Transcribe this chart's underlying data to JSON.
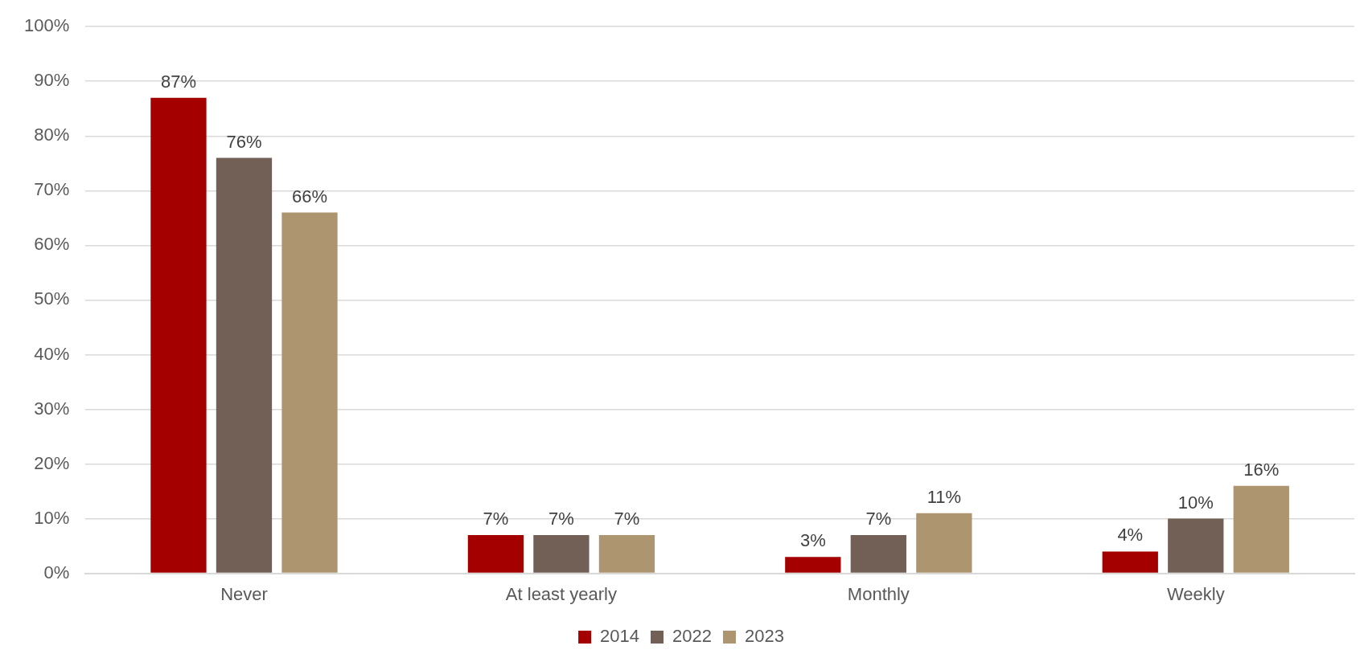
{
  "chart_data": {
    "type": "bar",
    "categories": [
      "Never",
      "At least yearly",
      "Monthly",
      "Weekly"
    ],
    "series": [
      {
        "name": "2014",
        "color": "#a50000",
        "values": [
          87,
          7,
          3,
          4
        ],
        "value_labels": [
          "87%",
          "7%",
          "3%",
          "4%"
        ]
      },
      {
        "name": "2022",
        "color": "#725f55",
        "values": [
          76,
          7,
          7,
          10
        ],
        "value_labels": [
          "76%",
          "7%",
          "7%",
          "10%"
        ]
      },
      {
        "name": "2023",
        "color": "#ad9570",
        "values": [
          66,
          7,
          11,
          16
        ],
        "value_labels": [
          "66%",
          "7%",
          "11%",
          "16%"
        ]
      }
    ],
    "ylim": [
      0,
      100
    ],
    "yticks": [
      {
        "value": 0,
        "label": "0%"
      },
      {
        "value": 10,
        "label": "10%"
      },
      {
        "value": 20,
        "label": "20%"
      },
      {
        "value": 30,
        "label": "30%"
      },
      {
        "value": 40,
        "label": "40%"
      },
      {
        "value": 50,
        "label": "50%"
      },
      {
        "value": 60,
        "label": "60%"
      },
      {
        "value": 70,
        "label": "70%"
      },
      {
        "value": 80,
        "label": "80%"
      },
      {
        "value": 90,
        "label": "90%"
      },
      {
        "value": 100,
        "label": "100%"
      }
    ],
    "grid": "y",
    "legend": "bottom"
  }
}
